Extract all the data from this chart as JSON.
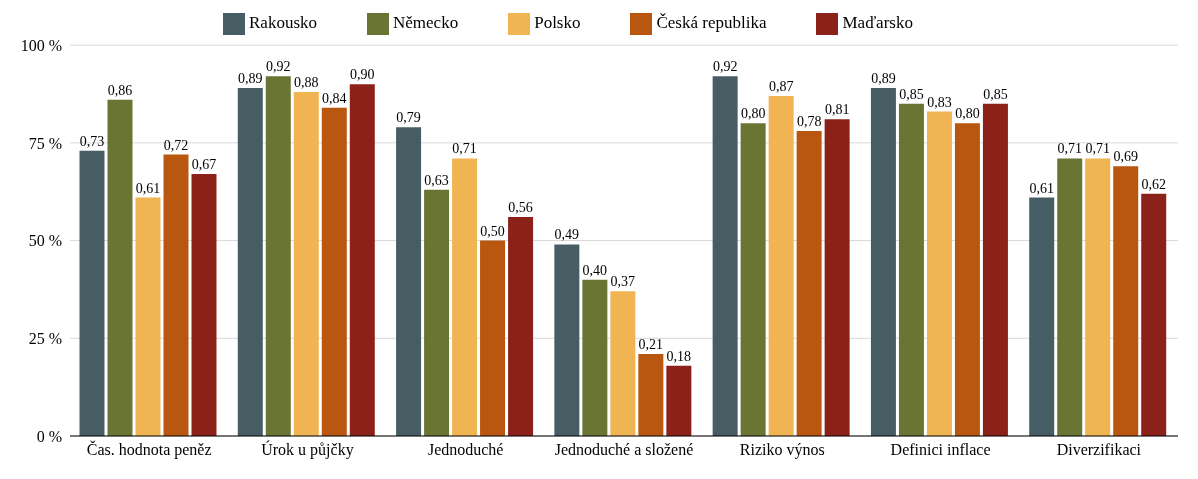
{
  "chart_data": {
    "type": "bar",
    "categories": [
      "Čas. hodnota peněz",
      "Úrok u půjčky",
      "Jednoduché",
      "Jednoduché a složené",
      "Riziko výnos",
      "Definici inflace",
      "Diverzifikaci"
    ],
    "series": [
      {
        "name": "Rakousko",
        "color": "#465e63",
        "values": [
          0.73,
          0.89,
          0.79,
          0.49,
          0.92,
          0.89,
          0.61
        ],
        "value_labels": [
          "0,73",
          "0,89",
          "0,79",
          "0,49",
          "0,92",
          "0,89",
          "0,61"
        ]
      },
      {
        "name": "Německo",
        "color": "#6b7533",
        "values": [
          0.86,
          0.92,
          0.63,
          0.4,
          0.8,
          0.85,
          0.71
        ],
        "value_labels": [
          "0,86",
          "0,92",
          "0,63",
          "0,40",
          "0,80",
          "0,85",
          "0,71"
        ]
      },
      {
        "name": "Polsko",
        "color": "#f0b452",
        "values": [
          0.61,
          0.88,
          0.71,
          0.37,
          0.87,
          0.83,
          0.71
        ],
        "value_labels": [
          "0,61",
          "0,88",
          "0,71",
          "0,37",
          "0,87",
          "0,83",
          "0,71"
        ]
      },
      {
        "name": "Česká republika",
        "color": "#b9560f",
        "values": [
          0.72,
          0.84,
          0.5,
          0.21,
          0.78,
          0.8,
          0.69
        ],
        "value_labels": [
          "0,72",
          "0,84",
          "0,50",
          "0,21",
          "0,78",
          "0,80",
          "0,69"
        ]
      },
      {
        "name": "Maďarsko",
        "color": "#8b2119",
        "values": [
          0.67,
          0.9,
          0.56,
          0.18,
          0.81,
          0.85,
          0.62
        ],
        "value_labels": [
          "0,67",
          "0,90",
          "0,56",
          "0,18",
          "0,81",
          "0,85",
          "0,62"
        ]
      }
    ],
    "ylim": [
      0,
      1
    ],
    "yticks": [
      {
        "value": 0,
        "label": "0 %"
      },
      {
        "value": 0.25,
        "label": "25 %"
      },
      {
        "value": 0.5,
        "label": "50 %"
      },
      {
        "value": 0.75,
        "label": "75 %"
      },
      {
        "value": 1,
        "label": "100 %"
      }
    ],
    "grid": "y",
    "legend": "top"
  }
}
